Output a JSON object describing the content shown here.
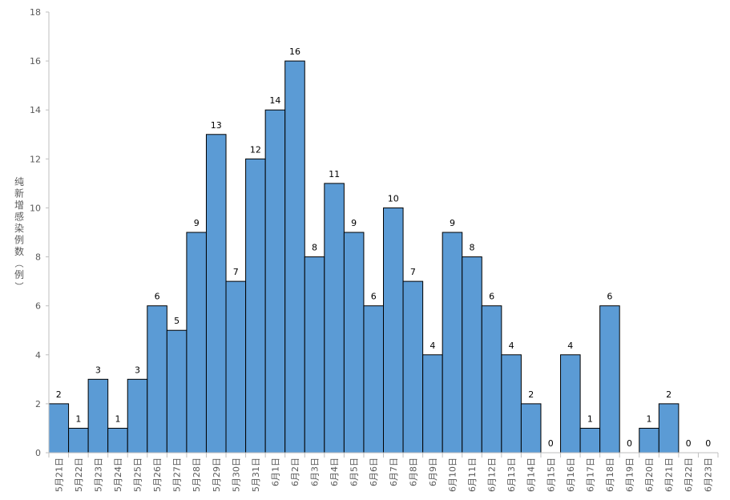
{
  "chart_data": {
    "type": "bar",
    "ylabel": "纯新增感染例数（例）",
    "ylim": [
      0,
      18
    ],
    "yticks": [
      0,
      2,
      4,
      6,
      8,
      10,
      12,
      14,
      16,
      18
    ],
    "grid": false,
    "legend": "none",
    "bar_color": "#5B9BD5",
    "bar_edge_color": "#000000",
    "categories": [
      "5月21日",
      "5月22日",
      "5月23日",
      "5月24日",
      "5月25日",
      "5月26日",
      "5月27日",
      "5月28日",
      "5月29日",
      "5月30日",
      "5月31日",
      "6月1日",
      "6月2日",
      "6月3日",
      "6月4日",
      "6月5日",
      "6月6日",
      "6月7日",
      "6月8日",
      "6月9日",
      "6月10日",
      "6月11日",
      "6月12日",
      "6月13日",
      "6月14日",
      "6月15日",
      "6月16日",
      "6月17日",
      "6月18日",
      "6月19日",
      "6月20日",
      "6月21日",
      "6月22日",
      "6月23日"
    ],
    "values": [
      2,
      1,
      3,
      1,
      3,
      6,
      5,
      9,
      13,
      7,
      12,
      14,
      16,
      8,
      11,
      9,
      6,
      10,
      7,
      4,
      9,
      8,
      6,
      4,
      2,
      0,
      4,
      1,
      6,
      0,
      1,
      2,
      0,
      0
    ]
  }
}
